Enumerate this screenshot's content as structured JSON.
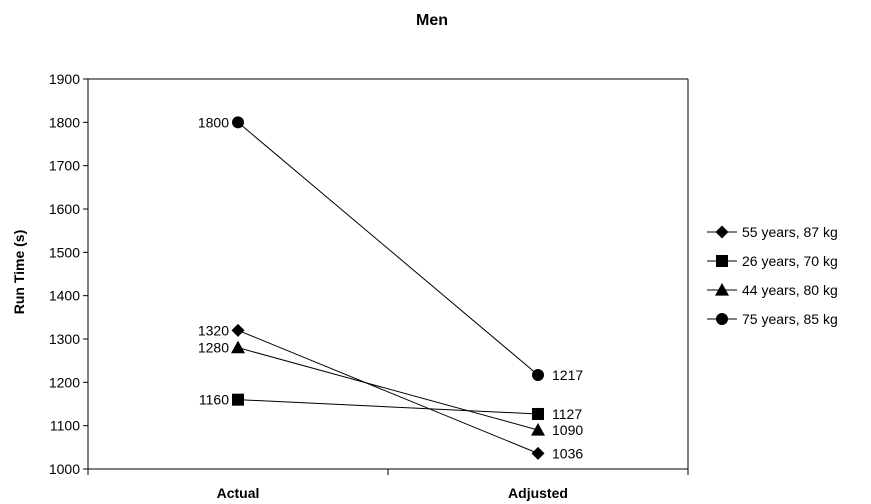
{
  "chart_data": {
    "type": "line",
    "title": "Men",
    "xlabel": "",
    "ylabel": "Run Time (s)",
    "categories": [
      "Actual",
      "Adjusted"
    ],
    "ylim": [
      1000,
      1900
    ],
    "yticks": [
      1000,
      1100,
      1200,
      1300,
      1400,
      1500,
      1600,
      1700,
      1800,
      1900
    ],
    "grid": false,
    "legend_position": "right",
    "series": [
      {
        "name": "55 years, 87 kg",
        "marker": "diamond",
        "values": [
          1320,
          1036
        ],
        "labels": [
          "1320",
          "1036"
        ]
      },
      {
        "name": "26 years, 70 kg",
        "marker": "square",
        "values": [
          1160,
          1127
        ],
        "labels": [
          "1160",
          "1127"
        ]
      },
      {
        "name": "44 years, 80 kg",
        "marker": "triangle",
        "values": [
          1280,
          1090
        ],
        "labels": [
          "1280",
          "1090"
        ]
      },
      {
        "name": "75 years, 85 kg",
        "marker": "circle",
        "values": [
          1800,
          1217
        ],
        "labels": [
          "1800",
          "1217"
        ]
      }
    ],
    "colors": {
      "line": "#000000",
      "marker": "#000000",
      "axis": "#000000"
    }
  }
}
